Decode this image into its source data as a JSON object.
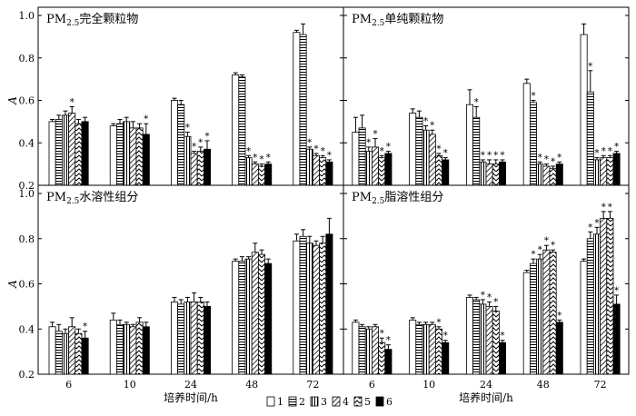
{
  "chart_data": [
    {
      "type": "bar",
      "title": "PM2.5完全颗粒物",
      "title_parts": {
        "prefix": "PM",
        "sub": "2.5",
        "rest": "完全颗粒物"
      },
      "categories": [
        "6",
        "10",
        "24",
        "48",
        "72"
      ],
      "ylabel": "A",
      "xlabel": "",
      "ylim": [
        0.2,
        1.0
      ],
      "yticks": [
        "0.2",
        "0.4",
        "0.6",
        "0.8",
        "1.0"
      ],
      "series": [
        {
          "name": "1",
          "values": [
            0.5,
            0.48,
            0.6,
            0.72,
            0.92
          ],
          "errors": [
            0.01,
            0.01,
            0.01,
            0.01,
            0.01
          ],
          "sig": [
            false,
            false,
            false,
            false,
            false
          ]
        },
        {
          "name": "2",
          "values": [
            0.51,
            0.49,
            0.58,
            0.71,
            0.91
          ],
          "errors": [
            0.02,
            0.02,
            0.02,
            0.01,
            0.05
          ],
          "sig": [
            false,
            false,
            false,
            false,
            false
          ]
        },
        {
          "name": "3",
          "values": [
            0.53,
            0.5,
            0.43,
            0.33,
            0.37
          ],
          "errors": [
            0.02,
            0.02,
            0.02,
            0.01,
            0.01
          ],
          "sig": [
            false,
            false,
            true,
            true,
            true
          ]
        },
        {
          "name": "4",
          "values": [
            0.54,
            0.47,
            0.35,
            0.3,
            0.34
          ],
          "errors": [
            0.03,
            0.03,
            0.01,
            0.01,
            0.01
          ],
          "sig": [
            true,
            false,
            true,
            true,
            true
          ]
        },
        {
          "name": "5",
          "values": [
            0.49,
            0.47,
            0.36,
            0.29,
            0.33
          ],
          "errors": [
            0.02,
            0.02,
            0.02,
            0.01,
            0.01
          ],
          "sig": [
            false,
            false,
            true,
            true,
            true
          ]
        },
        {
          "name": "6",
          "values": [
            0.5,
            0.44,
            0.37,
            0.3,
            0.31
          ],
          "errors": [
            0.02,
            0.05,
            0.04,
            0.01,
            0.01
          ],
          "sig": [
            false,
            true,
            true,
            true,
            true
          ]
        }
      ]
    },
    {
      "type": "bar",
      "title": "PM2.5单纯颗粒物",
      "title_parts": {
        "prefix": "PM",
        "sub": "2.5",
        "rest": "单纯颗粒物"
      },
      "categories": [
        "6",
        "10",
        "24",
        "48",
        "72"
      ],
      "ylabel": "",
      "xlabel": "",
      "ylim": [
        0.2,
        1.0
      ],
      "yticks": [],
      "series": [
        {
          "name": "1",
          "values": [
            0.45,
            0.54,
            0.58,
            0.68,
            0.91
          ],
          "errors": [
            0.07,
            0.02,
            0.07,
            0.02,
            0.05
          ],
          "sig": [
            false,
            false,
            false,
            false,
            false
          ]
        },
        {
          "name": "2",
          "values": [
            0.47,
            0.52,
            0.52,
            0.59,
            0.64
          ],
          "errors": [
            0.06,
            0.03,
            0.05,
            0.01,
            0.1
          ],
          "sig": [
            false,
            false,
            true,
            true,
            true
          ]
        },
        {
          "name": "3",
          "values": [
            0.36,
            0.46,
            0.31,
            0.3,
            0.32
          ],
          "errors": [
            0.02,
            0.02,
            0.01,
            0.01,
            0.01
          ],
          "sig": [
            true,
            true,
            true,
            true,
            true
          ]
        },
        {
          "name": "4",
          "values": [
            0.38,
            0.44,
            0.3,
            0.29,
            0.33
          ],
          "errors": [
            0.04,
            0.02,
            0.02,
            0.01,
            0.01
          ],
          "sig": [
            true,
            true,
            true,
            true,
            true
          ]
        },
        {
          "name": "5",
          "values": [
            0.33,
            0.34,
            0.3,
            0.28,
            0.33
          ],
          "errors": [
            0.01,
            0.01,
            0.02,
            0.01,
            0.01
          ],
          "sig": [
            true,
            true,
            true,
            true,
            true
          ]
        },
        {
          "name": "6",
          "values": [
            0.35,
            0.32,
            0.31,
            0.3,
            0.35
          ],
          "errors": [
            0.01,
            0.01,
            0.01,
            0.01,
            0.01
          ],
          "sig": [
            true,
            true,
            true,
            true,
            true
          ]
        }
      ]
    },
    {
      "type": "bar",
      "title": "PM2.5水溶性组分",
      "title_parts": {
        "prefix": "PM",
        "sub": "2.5",
        "rest": "水溶性组分"
      },
      "categories": [
        "6",
        "10",
        "24",
        "48",
        "72"
      ],
      "ylabel": "A",
      "xlabel": "培养时间/h",
      "ylim": [
        0.2,
        1.0
      ],
      "yticks": [
        "0.2",
        "0.4",
        "0.6",
        "0.8",
        "1.0"
      ],
      "series": [
        {
          "name": "1",
          "values": [
            0.41,
            0.44,
            0.52,
            0.7,
            0.79
          ],
          "errors": [
            0.02,
            0.03,
            0.02,
            0.01,
            0.03
          ],
          "sig": [
            false,
            false,
            false,
            false,
            false
          ]
        },
        {
          "name": "2",
          "values": [
            0.39,
            0.42,
            0.51,
            0.7,
            0.81
          ],
          "errors": [
            0.03,
            0.02,
            0.02,
            0.02,
            0.03
          ],
          "sig": [
            false,
            false,
            false,
            false,
            false
          ]
        },
        {
          "name": "3",
          "values": [
            0.38,
            0.42,
            0.52,
            0.71,
            0.78
          ],
          "errors": [
            0.02,
            0.01,
            0.02,
            0.01,
            0.03
          ],
          "sig": [
            false,
            false,
            false,
            false,
            false
          ]
        },
        {
          "name": "4",
          "values": [
            0.41,
            0.41,
            0.52,
            0.74,
            0.77
          ],
          "errors": [
            0.04,
            0.01,
            0.04,
            0.04,
            0.02
          ],
          "sig": [
            false,
            false,
            false,
            false,
            false
          ]
        },
        {
          "name": "5",
          "values": [
            0.38,
            0.43,
            0.52,
            0.73,
            0.78
          ],
          "errors": [
            0.02,
            0.02,
            0.02,
            0.02,
            0.03
          ],
          "sig": [
            false,
            false,
            false,
            false,
            false
          ]
        },
        {
          "name": "6",
          "values": [
            0.36,
            0.41,
            0.5,
            0.69,
            0.82
          ],
          "errors": [
            0.03,
            0.02,
            0.02,
            0.02,
            0.07
          ],
          "sig": [
            true,
            false,
            false,
            false,
            false
          ]
        }
      ]
    },
    {
      "type": "bar",
      "title": "PM2.5脂溶性组分",
      "title_parts": {
        "prefix": "PM",
        "sub": "2.5",
        "rest": "脂溶性组分"
      },
      "categories": [
        "6",
        "10",
        "24",
        "48",
        "72"
      ],
      "ylabel": "",
      "xlabel": "培养时间/h",
      "ylim": [
        0.2,
        1.0
      ],
      "yticks": [],
      "series": [
        {
          "name": "1",
          "values": [
            0.43,
            0.44,
            0.54,
            0.65,
            0.7
          ],
          "errors": [
            0.01,
            0.01,
            0.01,
            0.01,
            0.01
          ],
          "sig": [
            false,
            false,
            false,
            false,
            false
          ]
        },
        {
          "name": "2",
          "values": [
            0.41,
            0.42,
            0.53,
            0.69,
            0.8
          ],
          "errors": [
            0.01,
            0.01,
            0.01,
            0.02,
            0.03
          ],
          "sig": [
            false,
            false,
            false,
            true,
            true
          ]
        },
        {
          "name": "3",
          "values": [
            0.4,
            0.42,
            0.51,
            0.71,
            0.82
          ],
          "errors": [
            0.01,
            0.01,
            0.02,
            0.02,
            0.03
          ],
          "sig": [
            false,
            false,
            true,
            true,
            true
          ]
        },
        {
          "name": "4",
          "values": [
            0.41,
            0.42,
            0.5,
            0.75,
            0.89
          ],
          "errors": [
            0.01,
            0.01,
            0.02,
            0.02,
            0.03
          ],
          "sig": [
            false,
            false,
            true,
            true,
            true
          ]
        },
        {
          "name": "5",
          "values": [
            0.34,
            0.4,
            0.48,
            0.74,
            0.89
          ],
          "errors": [
            0.02,
            0.01,
            0.02,
            0.01,
            0.03
          ],
          "sig": [
            true,
            true,
            true,
            true,
            true
          ]
        },
        {
          "name": "6",
          "values": [
            0.31,
            0.34,
            0.34,
            0.43,
            0.51
          ],
          "errors": [
            0.02,
            0.01,
            0.01,
            0.01,
            0.04
          ],
          "sig": [
            true,
            true,
            true,
            true,
            true
          ]
        }
      ]
    }
  ],
  "legend": {
    "placement": "bottom-center",
    "items": [
      {
        "label": "1",
        "pattern": "white"
      },
      {
        "label": "2",
        "pattern": "horizontal-lines"
      },
      {
        "label": "3",
        "pattern": "vertical-lines"
      },
      {
        "label": "4",
        "pattern": "diagonal-lines"
      },
      {
        "label": "5",
        "pattern": "chevron"
      },
      {
        "label": "6",
        "pattern": "solid-black"
      }
    ]
  },
  "significance_marker": "*",
  "grid": false
}
